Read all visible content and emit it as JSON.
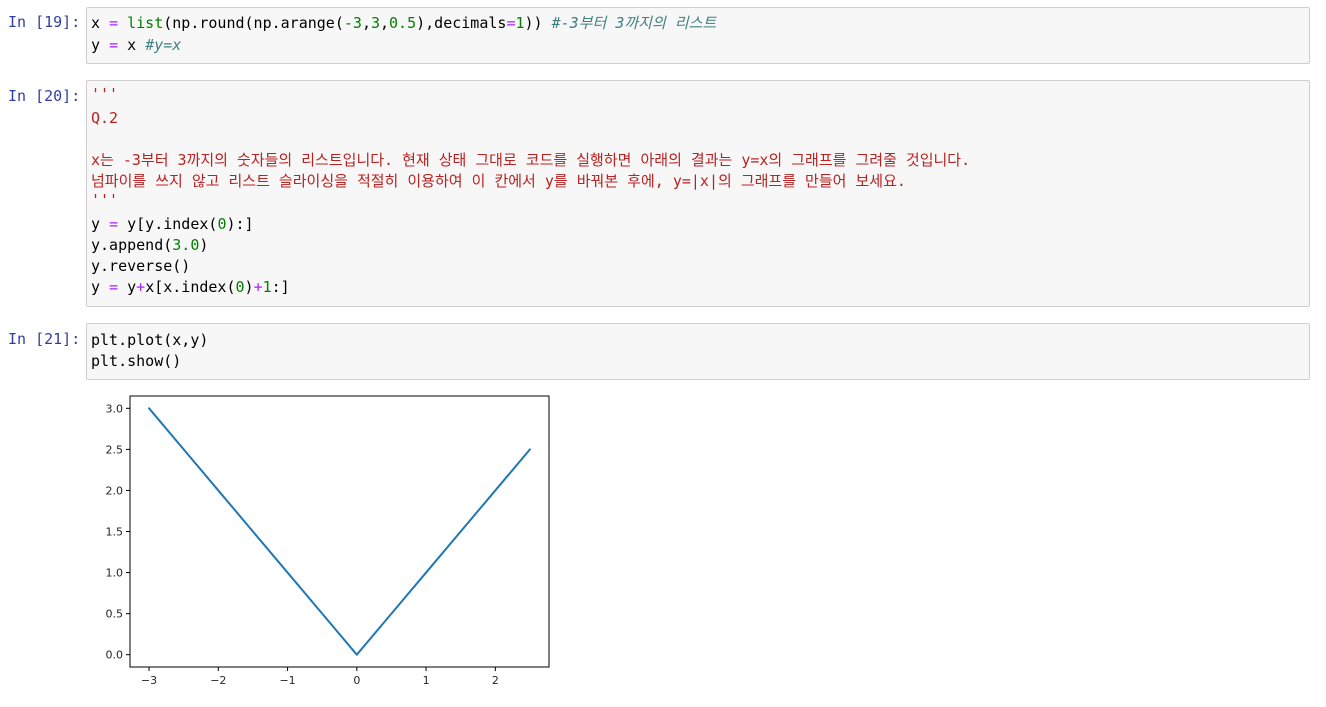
{
  "cells": [
    {
      "prompt": "In [19]:",
      "lines": [
        [
          {
            "t": "x ",
            "c": ""
          },
          {
            "t": "=",
            "c": "op"
          },
          {
            "t": " ",
            "c": ""
          },
          {
            "t": "list",
            "c": "kw"
          },
          {
            "t": "(np.round(np.arange(",
            "c": ""
          },
          {
            "t": "-3",
            "c": "num"
          },
          {
            "t": ",",
            "c": ""
          },
          {
            "t": "3",
            "c": "num"
          },
          {
            "t": ",",
            "c": ""
          },
          {
            "t": "0.5",
            "c": "num"
          },
          {
            "t": "),decimals",
            "c": ""
          },
          {
            "t": "=",
            "c": "op"
          },
          {
            "t": "1",
            "c": "num"
          },
          {
            "t": ")) ",
            "c": ""
          },
          {
            "t": "#-3부터 3까지의 리스트",
            "c": "cmt"
          }
        ],
        [
          {
            "t": "y ",
            "c": ""
          },
          {
            "t": "=",
            "c": "op"
          },
          {
            "t": " x ",
            "c": ""
          },
          {
            "t": "#y=x",
            "c": "cmt"
          }
        ]
      ]
    },
    {
      "prompt": "In [20]:",
      "lines": [
        [
          {
            "t": "'''",
            "c": "str"
          }
        ],
        [
          {
            "t": "Q.2",
            "c": "str"
          }
        ],
        [
          {
            "t": "",
            "c": ""
          }
        ],
        [
          {
            "t": "x는 -3부터 3까지의 숫자들의 리스트입니다. 현재 상태 그대로 코드를 실행하면 아래의 결과는 y=x의 그래프를 그려줄 것입니다.",
            "c": "str"
          }
        ],
        [
          {
            "t": "넘파이를 쓰지 않고 리스트 슬라이싱을 적절히 이용하여 이 칸에서 y를 바꿔본 후에, y=|x|의 그래프를 만들어 보세요.",
            "c": "str"
          }
        ],
        [
          {
            "t": "'''",
            "c": "str"
          }
        ],
        [
          {
            "t": "y ",
            "c": ""
          },
          {
            "t": "=",
            "c": "op"
          },
          {
            "t": " y[y.index(",
            "c": ""
          },
          {
            "t": "0",
            "c": "num"
          },
          {
            "t": "):]",
            "c": ""
          }
        ],
        [
          {
            "t": "y.append(",
            "c": ""
          },
          {
            "t": "3.0",
            "c": "num"
          },
          {
            "t": ")",
            "c": ""
          }
        ],
        [
          {
            "t": "y.reverse()",
            "c": ""
          }
        ],
        [
          {
            "t": "y ",
            "c": ""
          },
          {
            "t": "=",
            "c": "op"
          },
          {
            "t": " y",
            "c": ""
          },
          {
            "t": "+",
            "c": "op"
          },
          {
            "t": "x[x.index(",
            "c": ""
          },
          {
            "t": "0",
            "c": "num"
          },
          {
            "t": ")",
            "c": ""
          },
          {
            "t": "+",
            "c": "op"
          },
          {
            "t": "1",
            "c": "num"
          },
          {
            "t": ":]",
            "c": ""
          }
        ]
      ]
    },
    {
      "prompt": "In [21]:",
      "lines": [
        [
          {
            "t": "plt.plot(x,y)",
            "c": ""
          }
        ],
        [
          {
            "t": "plt.show()",
            "c": ""
          }
        ]
      ]
    }
  ],
  "chart_data": {
    "type": "line",
    "x": [
      -3.0,
      -2.5,
      -2.0,
      -1.5,
      -1.0,
      -0.5,
      0.0,
      0.5,
      1.0,
      1.5,
      2.0,
      2.5
    ],
    "series": [
      {
        "values": [
          3.0,
          2.5,
          2.0,
          1.5,
          1.0,
          0.5,
          0.0,
          0.5,
          1.0,
          1.5,
          2.0,
          2.5
        ],
        "color": "#1f77b4"
      }
    ],
    "xticks": [
      -3,
      -2,
      -1,
      0,
      1,
      2
    ],
    "xtick_labels": [
      "−3",
      "−2",
      "−1",
      "0",
      "1",
      "2"
    ],
    "yticks": [
      0.0,
      0.5,
      1.0,
      1.5,
      2.0,
      2.5,
      3.0
    ],
    "ytick_labels": [
      "0.0",
      "0.5",
      "1.0",
      "1.5",
      "2.0",
      "2.5",
      "3.0"
    ],
    "xlim": [
      -3.275,
      2.775
    ],
    "ylim": [
      -0.15,
      3.15
    ],
    "grid": false
  }
}
